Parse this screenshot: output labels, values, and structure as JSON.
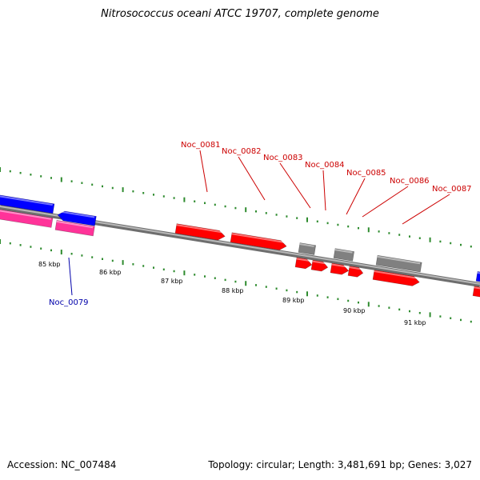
{
  "title": "Nitrosococcus oceani ATCC 19707, complete genome",
  "footer": {
    "accession": "Accession: NC_007484",
    "summary": "Topology: circular; Length: 3,481,691 bp; Genes: 3,027"
  },
  "colors": {
    "backbone": "#8c8c8c",
    "tick": "#2e8b2e",
    "forward_cds": "#ff0000",
    "reverse_cds": "#0000ff",
    "pink_cds": "#ff3399",
    "other_gene": "#808080",
    "label_forward": "#cc0000",
    "label_reverse": "#0000aa"
  },
  "scale_labels": [
    "85 kbp",
    "86 kbp",
    "87 kbp",
    "88 kbp",
    "89 kbp",
    "90 kbp",
    "91 kbp"
  ],
  "gene_labels": [
    {
      "name": "Noc_0079",
      "strand": "reverse"
    },
    {
      "name": "Noc_0081",
      "strand": "forward"
    },
    {
      "name": "Noc_0082",
      "strand": "forward"
    },
    {
      "name": "Noc_0083",
      "strand": "forward"
    },
    {
      "name": "Noc_0084",
      "strand": "forward"
    },
    {
      "name": "Noc_0085",
      "strand": "forward"
    },
    {
      "name": "Noc_0086",
      "strand": "forward"
    },
    {
      "name": "Noc_0087",
      "strand": "forward"
    }
  ]
}
